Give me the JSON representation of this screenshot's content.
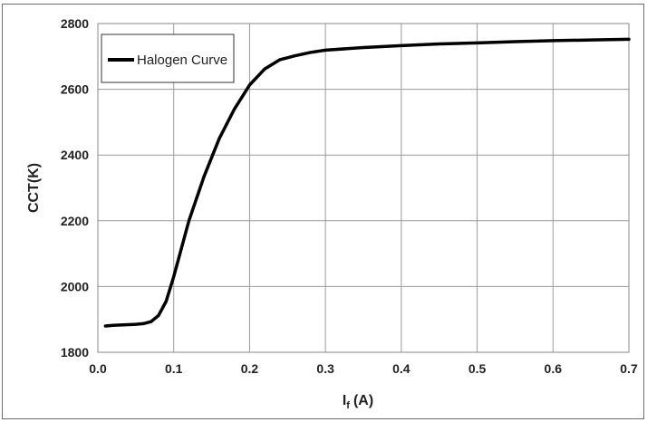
{
  "chart_data": {
    "type": "line",
    "title": "",
    "xlabel": "I",
    "xlabel_subscript": "f",
    "xlabel_unit": "(A)",
    "ylabel": "CCT(K)",
    "xlim": [
      0.0,
      0.7
    ],
    "ylim": [
      1800,
      2800
    ],
    "x_ticks": [
      "0.0",
      "0.1",
      "0.2",
      "0.3",
      "0.4",
      "0.5",
      "0.6",
      "0.7"
    ],
    "y_ticks": [
      "1800",
      "2000",
      "2200",
      "2400",
      "2600",
      "2800"
    ],
    "grid": true,
    "legend_position": "top-left",
    "series": [
      {
        "name": "Halogen Curve",
        "color": "#000000",
        "x": [
          0.01,
          0.02,
          0.03,
          0.04,
          0.05,
          0.06,
          0.07,
          0.08,
          0.09,
          0.1,
          0.11,
          0.12,
          0.14,
          0.16,
          0.18,
          0.2,
          0.22,
          0.24,
          0.26,
          0.28,
          0.3,
          0.35,
          0.4,
          0.45,
          0.5,
          0.55,
          0.6,
          0.65,
          0.7
        ],
        "y": [
          1880,
          1882,
          1883,
          1884,
          1885,
          1887,
          1893,
          1912,
          1955,
          2030,
          2115,
          2200,
          2335,
          2450,
          2540,
          2613,
          2662,
          2690,
          2702,
          2712,
          2719,
          2727,
          2733,
          2738,
          2741,
          2745,
          2748,
          2750,
          2752
        ]
      }
    ]
  }
}
